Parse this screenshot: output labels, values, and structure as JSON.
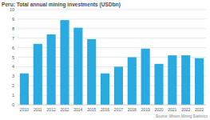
{
  "chart_data": {
    "type": "bar",
    "title": "Peru: Total annual mining investments (USDbn)",
    "categories": [
      "2010",
      "2011",
      "2012",
      "2012",
      "2014",
      "2015",
      "2016",
      "2017",
      "2018",
      "2019",
      "2020",
      "2021",
      "2022",
      "2022"
    ],
    "values": [
      3.3,
      6.4,
      7.4,
      8.9,
      8.1,
      6.9,
      3.3,
      4.0,
      5.0,
      5.9,
      4.3,
      5.2,
      5.2,
      4.9
    ],
    "color": "#29abe2",
    "ylim": [
      0,
      10
    ],
    "yticks": [
      0,
      1,
      2,
      3,
      4,
      5,
      6,
      7,
      8,
      9,
      10
    ],
    "grid": true,
    "source": "Source: Minem Mining Statistics"
  }
}
